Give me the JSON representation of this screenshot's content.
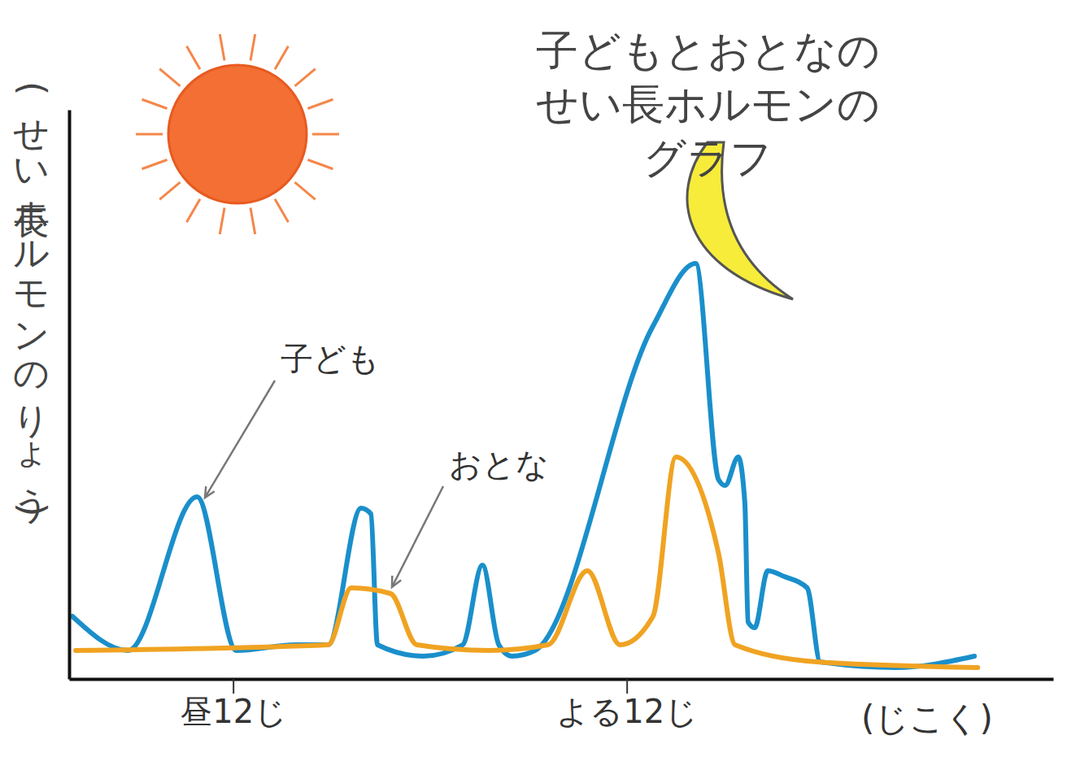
{
  "chart_data": {
    "type": "line",
    "title": "子どもとおとなのせい長ホルモンのグラフ",
    "y_label": "(せい長ホルモンのりょう)",
    "x_label": "(じこく)",
    "xlim": [
      7,
      37
    ],
    "xticks": [
      {
        "value": 12,
        "label": "昼12じ"
      },
      {
        "value": 24,
        "label": "よる12じ"
      }
    ],
    "ylim": [
      0,
      100
    ],
    "yticks": [],
    "tick_labels": "x",
    "series": [
      {
        "name": "子ども",
        "color": "#1a8fcb",
        "x": [
          7.1,
          8.8,
          10.9,
          12.1,
          13.9,
          14.9,
          15.9,
          16.2,
          16.4,
          17.8,
          19.0,
          19.6,
          20.1,
          20.5,
          21.2,
          24.8,
          26.1,
          26.8,
          27.0,
          27.4,
          27.6,
          27.7,
          27.9,
          28.3,
          28.8,
          29.5,
          29.9,
          32.2,
          34.6
        ],
        "values": [
          11,
          5,
          32,
          5,
          6,
          6,
          30,
          29,
          6,
          4,
          6,
          20,
          6,
          4,
          5,
          62,
          73,
          35,
          34,
          39,
          31,
          10,
          9,
          19,
          18,
          16,
          3,
          2,
          4
        ]
      },
      {
        "name": "おとな",
        "color": "#f0a322",
        "x": [
          7.2,
          14.9,
          15.6,
          16.8,
          17.6,
          19.8,
          21.6,
          22.8,
          23.8,
          24.8,
          25.5,
          26.8,
          27.3,
          29.8,
          34.7
        ],
        "values": [
          5,
          6,
          16,
          15,
          6,
          5,
          6,
          19,
          6,
          11,
          39,
          22,
          6,
          3,
          2
        ]
      }
    ]
  }
}
